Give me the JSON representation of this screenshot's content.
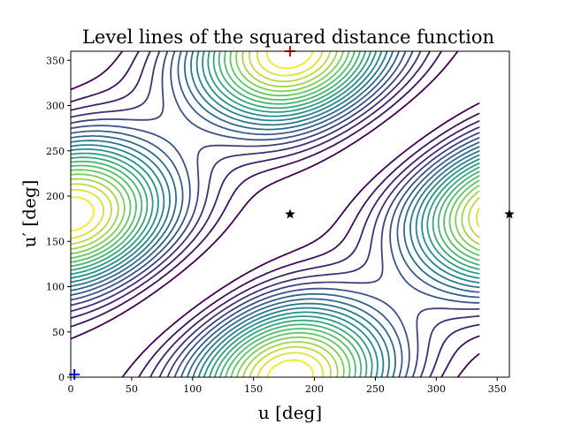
{
  "chart_data": {
    "type": "contour",
    "title": "Level lines of the squared distance function",
    "xlabel": "u [deg]",
    "ylabel": "u′ [deg]",
    "xlim": [
      0,
      360
    ],
    "ylim": [
      0,
      360
    ],
    "x_ticks": [
      0,
      50,
      100,
      150,
      200,
      250,
      300,
      350
    ],
    "y_ticks": [
      0,
      50,
      100,
      150,
      200,
      250,
      300,
      350
    ],
    "grid": false,
    "colormap": [
      "#440154",
      "#3b528b",
      "#21918c",
      "#5ec962",
      "#fde725"
    ],
    "markers": [
      {
        "name": "red-plus",
        "symbol": "+",
        "x": 180,
        "y": 360,
        "color": "#ff0000"
      },
      {
        "name": "blue-plus",
        "symbol": "+",
        "x": 3,
        "y": 3,
        "color": "#0000ff"
      },
      {
        "name": "black-star-1",
        "symbol": "*",
        "x": 180,
        "y": 180,
        "color": "#000000"
      },
      {
        "name": "black-star-2",
        "symbol": "*",
        "x": 360,
        "y": 180,
        "color": "#000000"
      }
    ]
  }
}
